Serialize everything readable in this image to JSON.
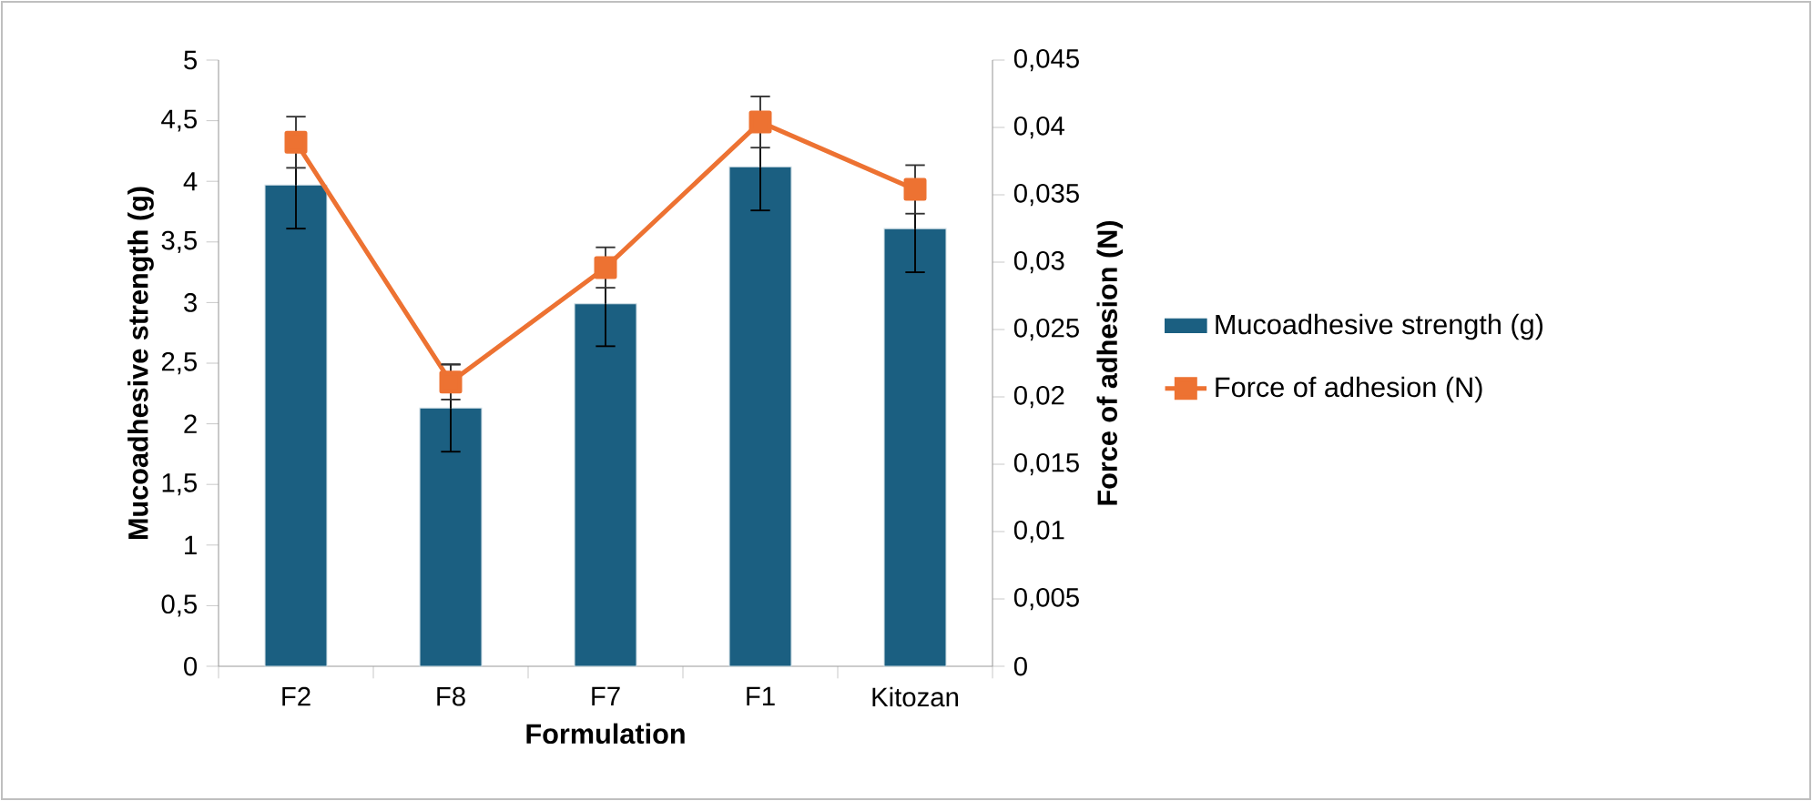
{
  "chart_data": {
    "type": "bar",
    "xlabel": "Formulation",
    "ylabel": "Mucoadhesive strength (g)",
    "y2label": "Force of adhesion (N)",
    "categories": [
      "F2",
      "F8",
      "F7",
      "F1",
      "Kitozan"
    ],
    "series": [
      {
        "name": "Mucoadhesive strength (g)",
        "type": "bar",
        "color": "#1b5f81",
        "values": [
          3.97,
          2.13,
          2.99,
          4.12,
          3.61
        ],
        "errors": [
          0.36,
          0.36,
          0.35,
          0.36,
          0.36
        ]
      },
      {
        "name": "Force of adhesion (N)",
        "type": "line",
        "axis": "y2",
        "color": "#ed7232",
        "marker": "square",
        "values": [
          0.0389,
          0.0211,
          0.0296,
          0.0404,
          0.0354
        ],
        "errors": [
          0.0019,
          0.0013,
          0.0015,
          0.0019,
          0.0018
        ]
      }
    ],
    "ylim": [
      0,
      5
    ],
    "yticks": [
      0,
      {
        "value": 0.5,
        "label": "0,5"
      },
      1,
      {
        "value": 1.5,
        "label": "1,5"
      },
      2,
      {
        "value": 2.5,
        "label": "2,5"
      },
      3,
      {
        "value": 3.5,
        "label": "3,5"
      },
      4,
      {
        "value": 4.5,
        "label": "4,5"
      },
      5
    ],
    "y2lim": [
      0,
      0.045
    ],
    "y2ticks": [
      0,
      {
        "value": 0.005,
        "label": "0,005"
      },
      {
        "value": 0.01,
        "label": "0,01"
      },
      {
        "value": 0.015,
        "label": "0,015"
      },
      {
        "value": 0.02,
        "label": "0,02"
      },
      {
        "value": 0.025,
        "label": "0,025"
      },
      {
        "value": 0.03,
        "label": "0,03"
      },
      {
        "value": 0.035,
        "label": "0,035"
      },
      {
        "value": 0.04,
        "label": "0,04"
      },
      {
        "value": 0.045,
        "label": "0,045"
      }
    ],
    "legend": "right",
    "grid": false
  }
}
